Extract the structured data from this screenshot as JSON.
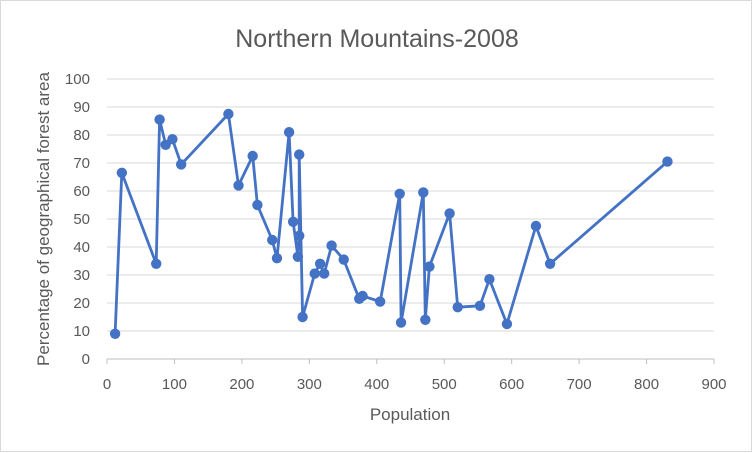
{
  "chart_data": {
    "type": "scatter",
    "title": "Northern Mountains-2008",
    "xlabel": "Population",
    "ylabel": "Percentage of geographical forest area",
    "xlim": [
      0,
      900
    ],
    "ylim": [
      0,
      100
    ],
    "xticks": [
      0,
      100,
      200,
      300,
      400,
      500,
      600,
      700,
      800,
      900
    ],
    "yticks": [
      0,
      10,
      20,
      30,
      40,
      50,
      60,
      70,
      80,
      90,
      100
    ],
    "grid": "horizontal",
    "legend": "none",
    "style": "line-with-markers",
    "color": "#4472c4",
    "points": [
      [
        12,
        9
      ],
      [
        22,
        66.5
      ],
      [
        73,
        34
      ],
      [
        78,
        85.5
      ],
      [
        87,
        76.5
      ],
      [
        97,
        78.5
      ],
      [
        110,
        69.5
      ],
      [
        180,
        87.5
      ],
      [
        195,
        62
      ],
      [
        216,
        72.5
      ],
      [
        223,
        55
      ],
      [
        245,
        42.5
      ],
      [
        252,
        36
      ],
      [
        270,
        81
      ],
      [
        276,
        49
      ],
      [
        283,
        36.5
      ],
      [
        285,
        44
      ],
      [
        285,
        73
      ],
      [
        290,
        15
      ],
      [
        308,
        30.5
      ],
      [
        316,
        34
      ],
      [
        322,
        30.5
      ],
      [
        333,
        40.5
      ],
      [
        351,
        35.5
      ],
      [
        374,
        21.5
      ],
      [
        379,
        22.5
      ],
      [
        405,
        20.5
      ],
      [
        434,
        59
      ],
      [
        436,
        13
      ],
      [
        469,
        59.5
      ],
      [
        472,
        14
      ],
      [
        478,
        33
      ],
      [
        508,
        52
      ],
      [
        520,
        18.5
      ],
      [
        553,
        19
      ],
      [
        567,
        28.5
      ],
      [
        593,
        12.5
      ],
      [
        636,
        47.5
      ],
      [
        657,
        34
      ],
      [
        831,
        70.5
      ]
    ]
  }
}
